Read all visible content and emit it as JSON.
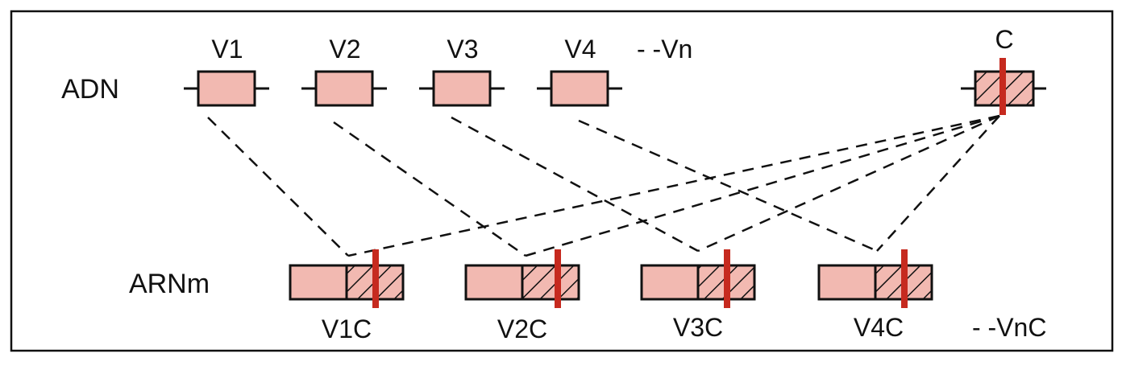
{
  "dna": {
    "row_label": "ADN",
    "segments": [
      "V1",
      "V2",
      "V3",
      "V4"
    ],
    "more_label": "- -Vn",
    "constant_label": "C"
  },
  "mrna": {
    "row_label": "ARNm",
    "transcripts": [
      "V1C",
      "V2C",
      "V3C",
      "V4C"
    ],
    "more_label": "- -VnC"
  },
  "colors": {
    "segment_fill": "#f2b9b1",
    "marker": "#c62a1f",
    "outline": "#111111"
  }
}
